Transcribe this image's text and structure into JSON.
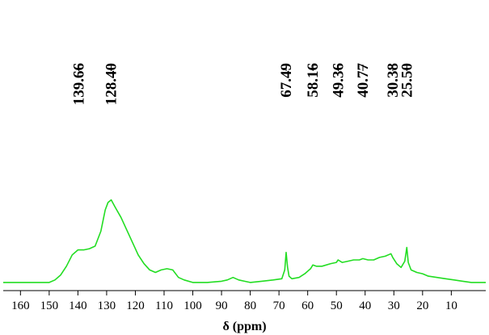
{
  "chart_data": {
    "type": "line",
    "title": "",
    "xlabel": "δ (ppm)",
    "ylabel": "",
    "xlim": [
      166,
      -2
    ],
    "ylim": [
      0,
      1
    ],
    "x_reversed": true,
    "grid": false,
    "colors": {
      "spectrum": "#22dd22",
      "axis": "#000000"
    },
    "x_ticks": [
      160,
      150,
      140,
      130,
      120,
      110,
      100,
      90,
      80,
      70,
      60,
      50,
      40,
      30,
      20,
      10
    ],
    "peak_labels": [
      "139.66",
      "128.40",
      "67.49",
      "58.16",
      "49.36",
      "40.77",
      "30.38",
      "25.50"
    ],
    "peak_label_positions_ppm": [
      139.66,
      128.4,
      67.49,
      58.16,
      49.36,
      40.77,
      30.38,
      25.5
    ],
    "series": [
      {
        "x": [
          166,
          160,
          155,
          150,
          148,
          146,
          144,
          142,
          140,
          138,
          136,
          134,
          132,
          130.5,
          129.5,
          128.4,
          127,
          125,
          123,
          121,
          119,
          117,
          115,
          113,
          111,
          109,
          107,
          105,
          103,
          100,
          95,
          90,
          88,
          86,
          84,
          82,
          80,
          76,
          72,
          69,
          68,
          67.5,
          67,
          66.5,
          65.5,
          63,
          61,
          59,
          58.2,
          57,
          55,
          52,
          50,
          49.4,
          48,
          46,
          44,
          42,
          40.8,
          39,
          37,
          35,
          33,
          31,
          30.4,
          29,
          27.5,
          26.2,
          25.5,
          25,
          24,
          22,
          20,
          18,
          15,
          12,
          9,
          6,
          3,
          0,
          -2
        ],
        "y": [
          0.02,
          0.02,
          0.02,
          0.02,
          0.04,
          0.08,
          0.15,
          0.24,
          0.28,
          0.28,
          0.29,
          0.31,
          0.43,
          0.6,
          0.66,
          0.68,
          0.62,
          0.54,
          0.44,
          0.34,
          0.24,
          0.17,
          0.12,
          0.1,
          0.12,
          0.13,
          0.12,
          0.06,
          0.04,
          0.02,
          0.02,
          0.03,
          0.04,
          0.06,
          0.04,
          0.03,
          0.02,
          0.03,
          0.04,
          0.05,
          0.12,
          0.26,
          0.14,
          0.07,
          0.05,
          0.06,
          0.09,
          0.13,
          0.16,
          0.15,
          0.15,
          0.17,
          0.18,
          0.2,
          0.18,
          0.19,
          0.2,
          0.2,
          0.21,
          0.2,
          0.2,
          0.22,
          0.23,
          0.25,
          0.22,
          0.17,
          0.14,
          0.19,
          0.3,
          0.18,
          0.12,
          0.1,
          0.09,
          0.07,
          0.06,
          0.05,
          0.04,
          0.03,
          0.02,
          0.02,
          0.02
        ]
      }
    ]
  }
}
